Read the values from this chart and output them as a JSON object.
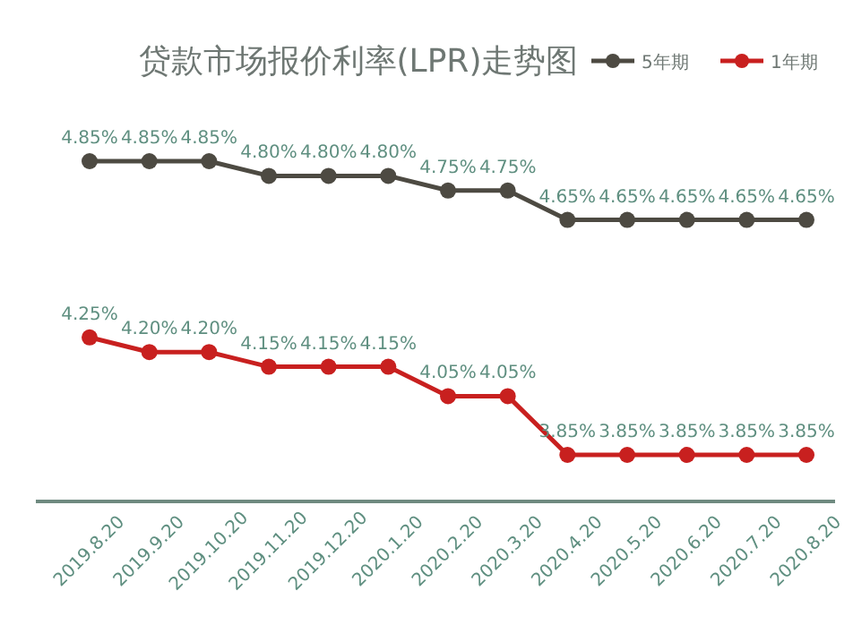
{
  "chart_data": {
    "type": "line",
    "title": "贷款市场报价利率(LPR)走势图",
    "categories": [
      "2019.8.20",
      "2019.9.20",
      "2019.10.20",
      "2019.11.20",
      "2019.12.20",
      "2020.1.20",
      "2020.2.20",
      "2020.3.20",
      "2020.4.20",
      "2020.5.20",
      "2020.6.20",
      "2020.7.20",
      "2020.8.20"
    ],
    "series": [
      {
        "name": "5年期",
        "color": "#4d4a42",
        "values": [
          4.85,
          4.85,
          4.85,
          4.8,
          4.8,
          4.8,
          4.75,
          4.75,
          4.65,
          4.65,
          4.65,
          4.65,
          4.65
        ],
        "value_labels": [
          "4.85%",
          "4.85%",
          "4.85%",
          "4.80%",
          "4.80%",
          "4.80%",
          "4.75%",
          "4.75%",
          "4.65%",
          "4.65%",
          "4.65%",
          "4.65%",
          "4.65%"
        ]
      },
      {
        "name": "1年期",
        "color": "#c8201f",
        "values": [
          4.25,
          4.2,
          4.2,
          4.15,
          4.15,
          4.15,
          4.05,
          4.05,
          3.85,
          3.85,
          3.85,
          3.85,
          3.85
        ],
        "value_labels": [
          "4.25%",
          "4.20%",
          "4.20%",
          "4.15%",
          "4.15%",
          "4.15%",
          "4.05%",
          "4.05%",
          "3.85%",
          "3.85%",
          "3.85%",
          "3.85%",
          "3.85%"
        ]
      }
    ],
    "legend": "top right",
    "marker": "circle",
    "line_style": "solid"
  }
}
